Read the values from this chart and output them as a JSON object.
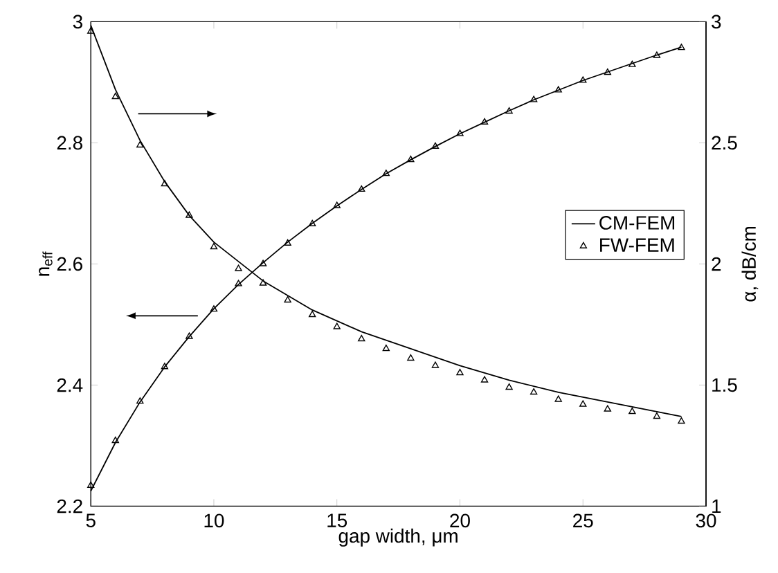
{
  "chart_data": {
    "type": "line",
    "xlabel": "gap width, μm",
    "ylabel": "n$_{eff}$",
    "y2label": "α, dB/cm",
    "xlim": [
      5,
      30
    ],
    "xticks": [
      5,
      10,
      15,
      20,
      25,
      30
    ],
    "ylim": [
      2.2,
      3
    ],
    "yticks": [
      2.2,
      2.4,
      2.6,
      2.8,
      3
    ],
    "y2lim": [
      1,
      3
    ],
    "y2ticks": [
      1,
      1.5,
      2,
      2.5,
      3
    ],
    "legend": "right",
    "series": [
      {
        "name": "CM-FEM",
        "axis": "y2",
        "color": "#000000",
        "x": [
          5,
          6,
          7,
          8,
          9,
          10,
          12,
          14,
          16,
          18,
          20,
          22,
          24,
          26,
          29
        ],
        "values": [
          2.985,
          2.72,
          2.51,
          2.34,
          2.2,
          2.09,
          1.93,
          1.81,
          1.72,
          1.65,
          1.58,
          1.52,
          1.47,
          1.43,
          1.37
        ]
      },
      {
        "name": "FW-FEM",
        "type": "scatter",
        "axis": "y2",
        "marker": "triangle",
        "color": "#000000",
        "x": [
          5,
          6,
          7,
          8,
          9,
          10,
          11,
          12,
          13,
          14,
          15,
          16,
          17,
          18,
          19,
          20,
          21,
          22,
          23,
          24,
          25,
          26,
          27,
          28,
          29
        ],
        "values": [
          2.96,
          2.69,
          2.49,
          2.33,
          2.2,
          2.07,
          1.98,
          1.92,
          1.85,
          1.79,
          1.74,
          1.69,
          1.65,
          1.61,
          1.58,
          1.55,
          1.52,
          1.49,
          1.47,
          1.44,
          1.42,
          1.4,
          1.39,
          1.37,
          1.35
        ]
      },
      {
        "axis": "y",
        "color": "#000000",
        "x": [
          5,
          6,
          7,
          8,
          9,
          10,
          11,
          12,
          13,
          14,
          15,
          16,
          17,
          18,
          19,
          20,
          21,
          22,
          23,
          24,
          25,
          26,
          27,
          28,
          29
        ],
        "values": [
          2.225,
          2.305,
          2.372,
          2.43,
          2.48,
          2.526,
          2.566,
          2.602,
          2.636,
          2.667,
          2.696,
          2.723,
          2.749,
          2.772,
          2.794,
          2.815,
          2.834,
          2.853,
          2.871,
          2.887,
          2.903,
          2.917,
          2.931,
          2.945,
          2.958
        ]
      },
      {
        "type": "scatter",
        "axis": "y",
        "marker": "triangle",
        "color": "#000000",
        "x": [
          5,
          6,
          7,
          8,
          9,
          10,
          11,
          12,
          13,
          14,
          15,
          16,
          17,
          18,
          19,
          20,
          21,
          22,
          23,
          24,
          25,
          26,
          27,
          28,
          29
        ],
        "values": [
          2.234,
          2.308,
          2.373,
          2.43,
          2.48,
          2.525,
          2.567,
          2.6,
          2.634,
          2.666,
          2.696,
          2.723,
          2.749,
          2.772,
          2.794,
          2.815,
          2.834,
          2.852,
          2.871,
          2.887,
          2.903,
          2.916,
          2.929,
          2.944,
          2.957
        ]
      }
    ]
  }
}
